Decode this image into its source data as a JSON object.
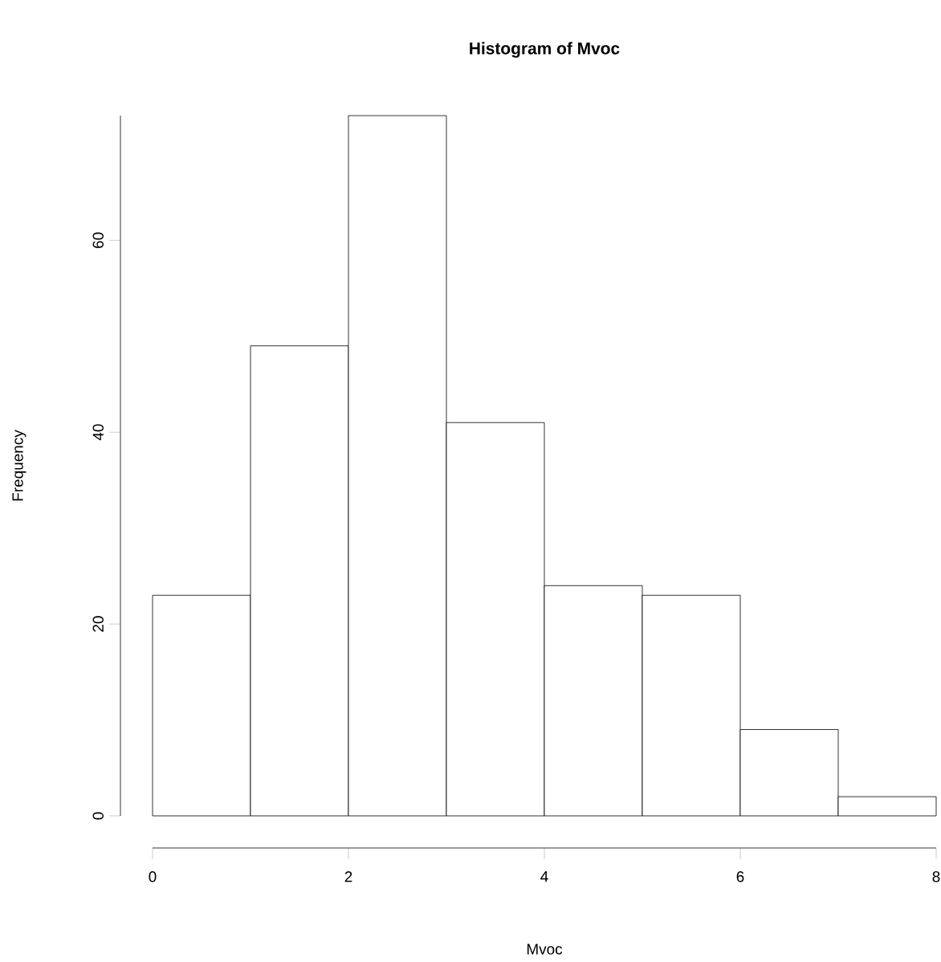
{
  "chart_data": {
    "type": "histogram",
    "title": "Histogram of Mvoc",
    "xlabel": "Mvoc",
    "ylabel": "Frequency",
    "bins": [
      0,
      1,
      2,
      3,
      4,
      5,
      6,
      7,
      8
    ],
    "values": [
      23,
      49,
      73,
      41,
      24,
      23,
      9,
      2
    ],
    "color": "#ffffff",
    "xlim": [
      0,
      8
    ],
    "ylim": [
      0,
      73
    ],
    "xticks": [
      0,
      2,
      4,
      6,
      8
    ],
    "yticks": [
      0,
      20,
      40,
      60
    ]
  }
}
